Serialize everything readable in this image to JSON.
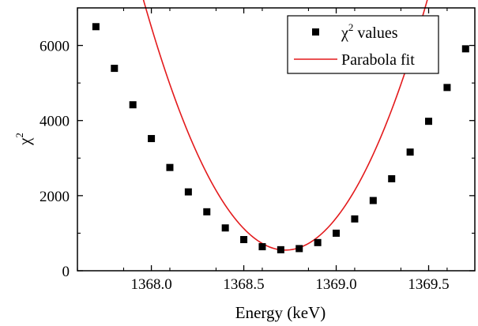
{
  "chart_data": {
    "type": "scatter",
    "xlabel": "Energy (keV)",
    "ylabel": "χ",
    "ylabel_sup": "2",
    "xlim": [
      1367.6,
      1369.75
    ],
    "ylim": [
      0,
      7000
    ],
    "x_ticks": [
      1368.0,
      1368.5,
      1369.0,
      1369.5
    ],
    "x_tick_labels": [
      "1368.0",
      "1368.5",
      "1369.0",
      "1369.5"
    ],
    "y_ticks": [
      0,
      2000,
      4000,
      6000
    ],
    "y_tick_labels": [
      "0",
      "2000",
      "4000",
      "6000"
    ],
    "legend_position": "top-right",
    "grid": false,
    "series": [
      {
        "name": "χ2 values",
        "legend_base": "χ",
        "legend_sup": "2",
        "legend_rest": " values",
        "kind": "scatter",
        "marker": "square",
        "color": "#000000",
        "x": [
          1367.7,
          1367.8,
          1367.9,
          1368.0,
          1368.1,
          1368.2,
          1368.3,
          1368.4,
          1368.5,
          1368.6,
          1368.7,
          1368.8,
          1368.9,
          1369.0,
          1369.1,
          1369.2,
          1369.3,
          1369.4,
          1369.5,
          1369.6,
          1369.7
        ],
        "y": [
          6500,
          5390,
          4420,
          3520,
          2750,
          2100,
          1570,
          1140,
          830,
          640,
          560,
          590,
          750,
          1000,
          1380,
          1870,
          2450,
          3160,
          3980,
          4880,
          5910
        ]
      },
      {
        "name": "Parabola fit",
        "kind": "line",
        "color": "#e31a1c",
        "coefficients": {
          "a": 11300,
          "x0": 1368.725,
          "c": 550
        }
      }
    ]
  }
}
